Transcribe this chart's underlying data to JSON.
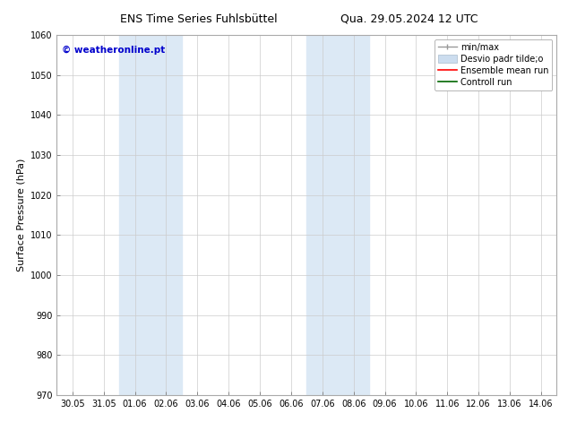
{
  "title_left": "ENS Time Series Fuhlsbüttel",
  "title_right": "Qua. 29.05.2024 12 UTC",
  "ylabel": "Surface Pressure (hPa)",
  "ylim": [
    970,
    1060
  ],
  "yticks": [
    970,
    980,
    990,
    1000,
    1010,
    1020,
    1030,
    1040,
    1050,
    1060
  ],
  "x_labels": [
    "30.05",
    "31.05",
    "01.06",
    "02.06",
    "03.06",
    "04.06",
    "05.06",
    "06.06",
    "07.06",
    "08.06",
    "09.06",
    "10.06",
    "11.06",
    "12.06",
    "13.06",
    "14.06"
  ],
  "x_positions": [
    0,
    1,
    2,
    3,
    4,
    5,
    6,
    7,
    8,
    9,
    10,
    11,
    12,
    13,
    14,
    15
  ],
  "shaded_regions": [
    {
      "xmin": 1.5,
      "xmax": 3.5,
      "color": "#dce9f5"
    },
    {
      "xmin": 7.5,
      "xmax": 9.5,
      "color": "#dce9f5"
    }
  ],
  "watermark_text": "© weatheronline.pt",
  "watermark_color": "#0000cc",
  "bg_color": "#ffffff",
  "title_fontsize": 9,
  "tick_fontsize": 7,
  "ylabel_fontsize": 8,
  "legend_fontsize": 7
}
